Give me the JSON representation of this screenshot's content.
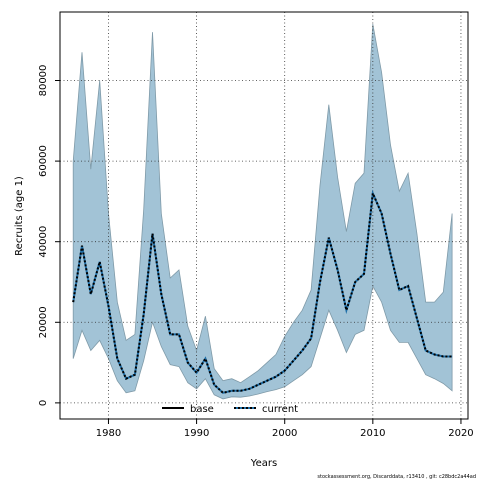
{
  "chart_data": {
    "type": "line",
    "title": "",
    "xlabel": "Years",
    "ylabel": "Recruits (age 1)",
    "xlim": [
      1974.5,
      2020.8
    ],
    "ylim": [
      -4000,
      97000
    ],
    "x_ticks": [
      1980,
      1990,
      2000,
      2010,
      2020
    ],
    "y_ticks": [
      0,
      20000,
      40000,
      60000,
      80000
    ],
    "grid": true,
    "legend_position": "bottom-center",
    "series": [
      {
        "name": "base",
        "style": "solid",
        "color": "#000000",
        "x": [],
        "y": []
      },
      {
        "name": "current",
        "style": "dotted",
        "color": "#000000",
        "band_color": "#a2c3d6",
        "highlight_color": "#1f6fa8",
        "x": [
          1976,
          1977,
          1978,
          1979,
          1980,
          1981,
          1982,
          1983,
          1984,
          1985,
          1986,
          1987,
          1988,
          1989,
          1990,
          1991,
          1992,
          1993,
          1994,
          1995,
          1996,
          1997,
          1998,
          1999,
          2000,
          2001,
          2002,
          2003,
          2004,
          2005,
          2006,
          2007,
          2008,
          2009,
          2010,
          2011,
          2012,
          2013,
          2014,
          2015,
          2016,
          2017,
          2018,
          2019
        ],
        "y": [
          25000,
          39000,
          27000,
          35000,
          24000,
          11000,
          6000,
          7000,
          22000,
          42000,
          27000,
          17000,
          17000,
          10000,
          7500,
          11000,
          4500,
          2500,
          3000,
          3000,
          3500,
          4500,
          5500,
          6500,
          8000,
          10500,
          13000,
          16000,
          30000,
          41000,
          33000,
          23000,
          30000,
          32000,
          52000,
          47000,
          37000,
          28000,
          29000,
          21000,
          13000,
          12000,
          11500,
          11500
        ],
        "lower": [
          11000,
          18000,
          13000,
          15500,
          11000,
          5500,
          2500,
          3000,
          10500,
          20000,
          14000,
          9500,
          9000,
          5000,
          3500,
          6000,
          2000,
          1000,
          1500,
          1400,
          1700,
          2200,
          2800,
          3300,
          4000,
          5500,
          7000,
          9000,
          16000,
          23000,
          18000,
          12500,
          17000,
          18000,
          29000,
          25000,
          18000,
          15000,
          15000,
          11000,
          7000,
          6000,
          4800,
          3000
        ],
        "upper": [
          60000,
          87000,
          58000,
          80000,
          47000,
          25000,
          15500,
          17000,
          48000,
          92000,
          47000,
          31000,
          33000,
          19000,
          13000,
          21500,
          8500,
          5500,
          6000,
          5000,
          6500,
          8000,
          10000,
          12000,
          16500,
          20000,
          23000,
          28000,
          54000,
          74000,
          56000,
          42500,
          54500,
          57000,
          94000,
          82000,
          64000,
          52500,
          57000,
          42000,
          25000,
          25000,
          27500,
          47000
        ]
      }
    ]
  },
  "footer": {
    "credit": "stockassessment.org, Discarddata, r13410 , git: c28bdc2a44ad"
  }
}
